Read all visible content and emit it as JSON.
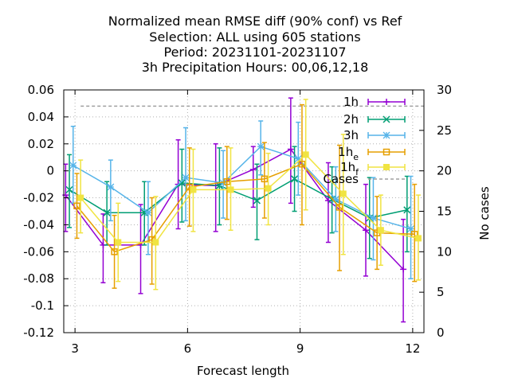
{
  "chart_data": {
    "type": "line",
    "title": [
      "Normalized mean RMSE diff (90% conf) vs Ref",
      "Selection: ALL using   605 stations",
      "Period: 20231101-20231107",
      "3h Precipitation   Hours:  00,06,12,18"
    ],
    "xlabel": "Forecast length",
    "ylabel": "",
    "y2label": "No cases",
    "xlim": [
      2.7,
      12.3
    ],
    "ylim": [
      -0.12,
      0.06
    ],
    "y2lim": [
      0,
      30
    ],
    "xticks": [
      3,
      6,
      9,
      12
    ],
    "yticks": [
      0.06,
      0.04,
      0.02,
      0,
      -0.02,
      -0.04,
      -0.06,
      -0.08,
      -0.1,
      -0.12
    ],
    "y2ticks": [
      30,
      25,
      20,
      15,
      10,
      5,
      0
    ],
    "xtick_labels": [
      "3",
      "6",
      "9",
      "12"
    ],
    "ytick_labels": [
      "0.06",
      "0.04",
      "0.02",
      "0",
      "-0.02",
      "-0.04",
      "-0.06",
      "-0.08",
      "-0.1",
      "-0.12"
    ],
    "y2tick_labels": [
      "30",
      "25",
      "20",
      "15",
      "10",
      "5",
      "0"
    ],
    "grid": true,
    "legend_position": "top-right",
    "series": [
      {
        "name": "1h",
        "color": "#9400d3",
        "marker": "plus",
        "points": [
          {
            "x": 2.75,
            "y": -0.018,
            "lo": -0.045,
            "hi": 0.005
          },
          {
            "x": 3.75,
            "y": -0.055,
            "lo": -0.083,
            "hi": -0.032
          },
          {
            "x": 4.75,
            "y": -0.055,
            "lo": -0.091,
            "hi": -0.025
          },
          {
            "x": 5.75,
            "y": -0.01,
            "lo": -0.043,
            "hi": 0.023
          },
          {
            "x": 6.75,
            "y": -0.011,
            "lo": -0.045,
            "hi": 0.02
          },
          {
            "x": 7.75,
            "y": 0.001,
            "lo": -0.027,
            "hi": 0.018
          },
          {
            "x": 8.75,
            "y": 0.016,
            "lo": -0.024,
            "hi": 0.054
          },
          {
            "x": 9.75,
            "y": -0.022,
            "lo": -0.053,
            "hi": 0.006
          },
          {
            "x": 10.75,
            "y": -0.044,
            "lo": -0.078,
            "hi": -0.01
          },
          {
            "x": 11.75,
            "y": -0.073,
            "lo": -0.112,
            "hi": -0.036
          }
        ]
      },
      {
        "name": "2h",
        "color": "#009e73",
        "marker": "cross",
        "points": [
          {
            "x": 2.85,
            "y": -0.014,
            "lo": -0.042,
            "hi": 0.012
          },
          {
            "x": 3.85,
            "y": -0.031,
            "lo": -0.055,
            "hi": -0.008
          },
          {
            "x": 4.85,
            "y": -0.031,
            "lo": -0.055,
            "hi": -0.008
          },
          {
            "x": 5.85,
            "y": -0.009,
            "lo": -0.038,
            "hi": 0.016
          },
          {
            "x": 6.85,
            "y": -0.011,
            "lo": -0.04,
            "hi": 0.017
          },
          {
            "x": 7.85,
            "y": -0.022,
            "lo": -0.051,
            "hi": 0.005
          },
          {
            "x": 8.85,
            "y": -0.006,
            "lo": -0.03,
            "hi": 0.018
          },
          {
            "x": 9.85,
            "y": -0.021,
            "lo": -0.046,
            "hi": 0.003
          },
          {
            "x": 10.85,
            "y": -0.035,
            "lo": -0.065,
            "hi": -0.005
          },
          {
            "x": 11.85,
            "y": -0.029,
            "lo": -0.06,
            "hi": -0.004
          }
        ]
      },
      {
        "name": "3h",
        "color": "#56b4e9",
        "marker": "star",
        "points": [
          {
            "x": 2.95,
            "y": 0.004,
            "lo": -0.024,
            "hi": 0.033
          },
          {
            "x": 3.95,
            "y": -0.012,
            "lo": -0.037,
            "hi": 0.008
          },
          {
            "x": 4.95,
            "y": -0.031,
            "lo": -0.062,
            "hi": -0.008
          },
          {
            "x": 5.95,
            "y": -0.005,
            "lo": -0.037,
            "hi": 0.032
          },
          {
            "x": 6.95,
            "y": -0.009,
            "lo": -0.035,
            "hi": 0.015
          },
          {
            "x": 7.95,
            "y": 0.018,
            "lo": -0.003,
            "hi": 0.037
          },
          {
            "x": 8.95,
            "y": 0.009,
            "lo": -0.018,
            "hi": 0.036
          },
          {
            "x": 9.95,
            "y": -0.021,
            "lo": -0.045,
            "hi": 0.003
          },
          {
            "x": 10.95,
            "y": -0.035,
            "lo": -0.066,
            "hi": -0.005
          },
          {
            "x": 11.95,
            "y": -0.043,
            "lo": -0.08,
            "hi": -0.004
          }
        ]
      },
      {
        "name": "1h_e",
        "color": "#e69f00",
        "marker": "square",
        "points": [
          {
            "x": 3.05,
            "y": -0.026,
            "lo": -0.05,
            "hi": -0.002
          },
          {
            "x": 4.05,
            "y": -0.06,
            "lo": -0.087,
            "hi": -0.033
          },
          {
            "x": 5.05,
            "y": -0.051,
            "lo": -0.084,
            "hi": -0.02
          },
          {
            "x": 6.05,
            "y": -0.012,
            "lo": -0.041,
            "hi": 0.017
          },
          {
            "x": 7.05,
            "y": -0.008,
            "lo": -0.036,
            "hi": 0.018
          },
          {
            "x": 8.05,
            "y": -0.006,
            "lo": -0.035,
            "hi": 0.021
          },
          {
            "x": 9.05,
            "y": 0.005,
            "lo": -0.04,
            "hi": 0.049
          },
          {
            "x": 10.05,
            "y": -0.027,
            "lo": -0.074,
            "hi": 0.019
          },
          {
            "x": 11.05,
            "y": -0.046,
            "lo": -0.073,
            "hi": -0.019
          },
          {
            "x": 12.05,
            "y": -0.047,
            "lo": -0.082,
            "hi": -0.01
          }
        ]
      },
      {
        "name": "1h_f",
        "color": "#f0e442",
        "marker": "filled-square",
        "points": [
          {
            "x": 3.15,
            "y": -0.02,
            "lo": -0.046,
            "hi": 0.008
          },
          {
            "x": 4.15,
            "y": -0.053,
            "lo": -0.082,
            "hi": -0.024
          },
          {
            "x": 5.15,
            "y": -0.053,
            "lo": -0.088,
            "hi": -0.019
          },
          {
            "x": 6.15,
            "y": -0.014,
            "lo": -0.045,
            "hi": 0.016
          },
          {
            "x": 7.15,
            "y": -0.014,
            "lo": -0.044,
            "hi": 0.017
          },
          {
            "x": 8.15,
            "y": -0.013,
            "lo": -0.04,
            "hi": 0.013
          },
          {
            "x": 9.15,
            "y": 0.012,
            "lo": -0.029,
            "hi": 0.053
          },
          {
            "x": 10.15,
            "y": -0.017,
            "lo": -0.062,
            "hi": 0.027
          },
          {
            "x": 11.15,
            "y": -0.044,
            "lo": -0.07,
            "hi": -0.018
          },
          {
            "x": 12.15,
            "y": -0.05,
            "lo": -0.081,
            "hi": -0.018
          }
        ]
      }
    ],
    "cases": {
      "name": "Cases",
      "color": "#a0a0a0",
      "x": [
        3.15,
        12.3
      ],
      "y2": [
        28,
        28
      ]
    }
  }
}
